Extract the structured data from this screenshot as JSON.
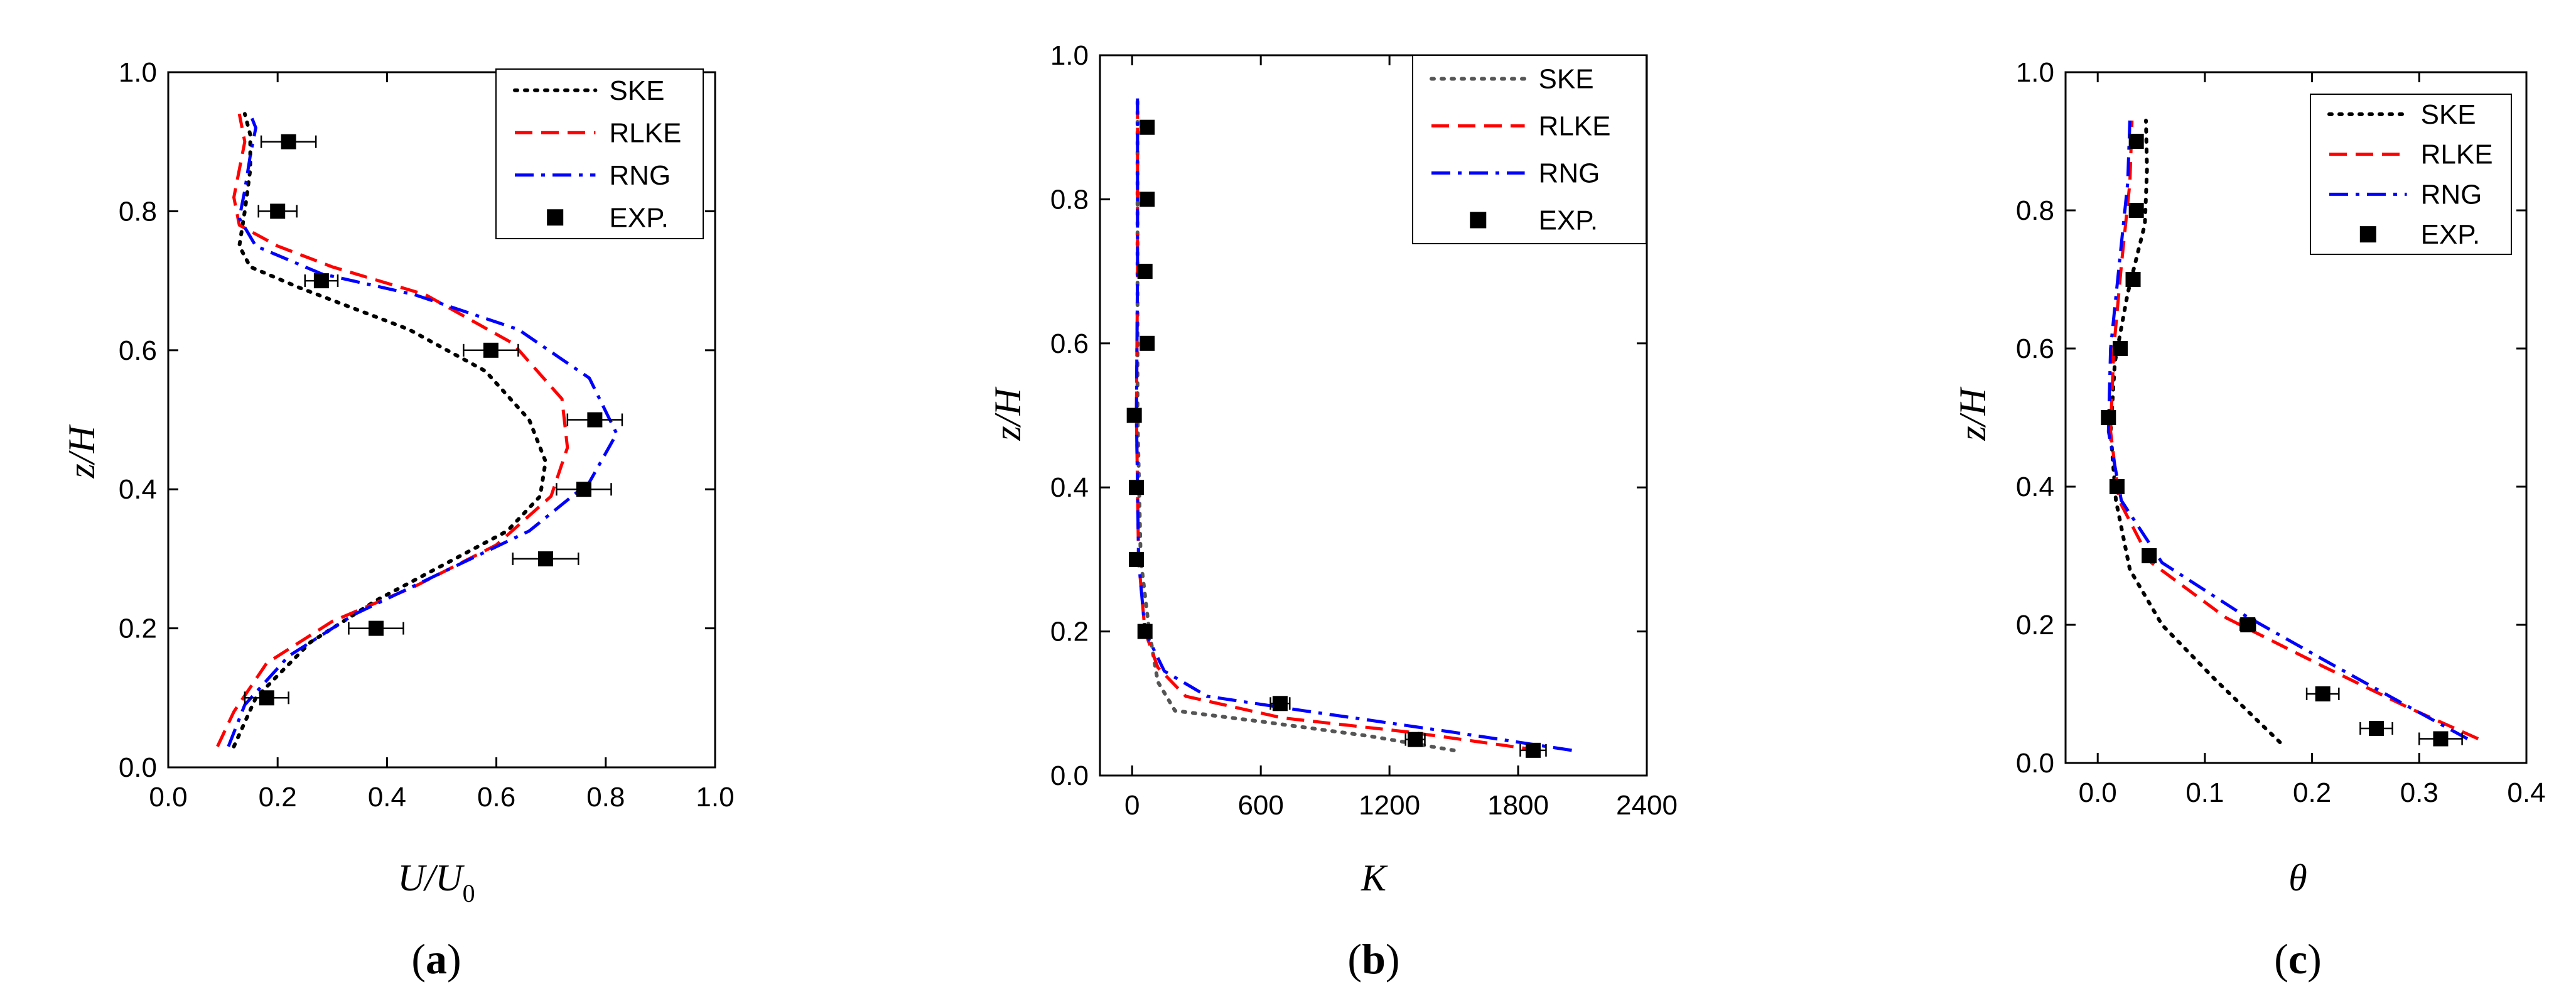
{
  "panels": [
    {
      "caption": {
        "open": "(",
        "letter": "a",
        "close": ")"
      },
      "x_label": {
        "main": "U/U",
        "sub": "0"
      },
      "y_label": "z/H",
      "chart_data": {
        "type": "line",
        "xlim": [
          0.0,
          1.0
        ],
        "ylim": [
          0.0,
          1.0
        ],
        "x_ticks": [
          "0.0",
          "0.2",
          "0.4",
          "0.6",
          "0.8",
          "1.0"
        ],
        "y_ticks": [
          "0.0",
          "0.2",
          "0.4",
          "0.6",
          "0.8",
          "1.0"
        ],
        "legend_position": "top-right",
        "series": [
          {
            "name": "SKE",
            "style": "dotted",
            "color": "#000000",
            "points": [
              [
                0.12,
                0.03
              ],
              [
                0.16,
                0.1
              ],
              [
                0.26,
                0.18
              ],
              [
                0.38,
                0.24
              ],
              [
                0.5,
                0.29
              ],
              [
                0.62,
                0.34
              ],
              [
                0.68,
                0.39
              ],
              [
                0.69,
                0.44
              ],
              [
                0.66,
                0.5
              ],
              [
                0.58,
                0.57
              ],
              [
                0.44,
                0.63
              ],
              [
                0.24,
                0.69
              ],
              [
                0.15,
                0.72
              ],
              [
                0.13,
                0.75
              ],
              [
                0.14,
                0.8
              ],
              [
                0.15,
                0.86
              ],
              [
                0.15,
                0.91
              ],
              [
                0.14,
                0.94
              ]
            ]
          },
          {
            "name": "RLKE",
            "style": "dashed",
            "color": "#ff0000",
            "points": [
              [
                0.09,
                0.03
              ],
              [
                0.12,
                0.08
              ],
              [
                0.18,
                0.15
              ],
              [
                0.3,
                0.21
              ],
              [
                0.45,
                0.26
              ],
              [
                0.6,
                0.32
              ],
              [
                0.7,
                0.39
              ],
              [
                0.73,
                0.46
              ],
              [
                0.72,
                0.53
              ],
              [
                0.63,
                0.61
              ],
              [
                0.47,
                0.68
              ],
              [
                0.3,
                0.72
              ],
              [
                0.2,
                0.75
              ],
              [
                0.13,
                0.78
              ],
              [
                0.12,
                0.82
              ],
              [
                0.13,
                0.86
              ],
              [
                0.14,
                0.9
              ],
              [
                0.13,
                0.94
              ]
            ]
          },
          {
            "name": "RNG",
            "style": "dashdot",
            "color": "#0000ff",
            "points": [
              [
                0.11,
                0.03
              ],
              [
                0.14,
                0.09
              ],
              [
                0.22,
                0.16
              ],
              [
                0.34,
                0.22
              ],
              [
                0.5,
                0.28
              ],
              [
                0.66,
                0.34
              ],
              [
                0.77,
                0.41
              ],
              [
                0.82,
                0.48
              ],
              [
                0.77,
                0.56
              ],
              [
                0.64,
                0.63
              ],
              [
                0.45,
                0.68
              ],
              [
                0.28,
                0.71
              ],
              [
                0.16,
                0.75
              ],
              [
                0.13,
                0.79
              ],
              [
                0.14,
                0.83
              ],
              [
                0.15,
                0.88
              ],
              [
                0.16,
                0.92
              ],
              [
                0.15,
                0.94
              ]
            ]
          }
        ],
        "experiment": {
          "name": "EXP.",
          "points": [
            [
              0.22,
              0.9
            ],
            [
              0.2,
              0.8
            ],
            [
              0.28,
              0.7
            ],
            [
              0.59,
              0.6
            ],
            [
              0.78,
              0.5
            ],
            [
              0.76,
              0.4
            ],
            [
              0.69,
              0.3
            ],
            [
              0.38,
              0.2
            ],
            [
              0.18,
              0.1
            ]
          ],
          "error": [
            0.05,
            0.035,
            0.03,
            0.05,
            0.05,
            0.05,
            0.06,
            0.05,
            0.04
          ]
        }
      }
    },
    {
      "caption": {
        "open": "(",
        "letter": "b",
        "close": ")"
      },
      "x_label": {
        "main": "K",
        "sub": ""
      },
      "y_label": "z/H",
      "chart_data": {
        "type": "line",
        "xlim": [
          -150,
          2400
        ],
        "ylim": [
          0.0,
          1.0
        ],
        "x_tick_values": [
          0,
          600,
          1200,
          1800,
          2400
        ],
        "x_ticks": [
          "0",
          "600",
          "1200",
          "1800",
          "2400"
        ],
        "y_ticks": [
          "0.0",
          "0.2",
          "0.4",
          "0.6",
          "0.8",
          "1.0"
        ],
        "legend_position": "top-right",
        "series": [
          {
            "name": "SKE",
            "style": "dotted",
            "color": "#555555",
            "points": [
              [
                1500,
                0.035
              ],
              [
                1100,
                0.055
              ],
              [
                600,
                0.075
              ],
              [
                200,
                0.09
              ],
              [
                120,
                0.13
              ],
              [
                80,
                0.2
              ],
              [
                40,
                0.3
              ],
              [
                25,
                0.5
              ],
              [
                25,
                0.7
              ],
              [
                25,
                0.94
              ]
            ]
          },
          {
            "name": "RLKE",
            "style": "dashed",
            "color": "#ff0000",
            "points": [
              [
                1900,
                0.035
              ],
              [
                1300,
                0.06
              ],
              [
                700,
                0.08
              ],
              [
                250,
                0.11
              ],
              [
                120,
                0.15
              ],
              [
                60,
                0.2
              ],
              [
                30,
                0.3
              ],
              [
                20,
                0.5
              ],
              [
                25,
                0.7
              ],
              [
                25,
                0.94
              ]
            ]
          },
          {
            "name": "RNG",
            "style": "dashdot",
            "color": "#0000ff",
            "points": [
              [
                2050,
                0.035
              ],
              [
                1500,
                0.06
              ],
              [
                800,
                0.09
              ],
              [
                350,
                0.11
              ],
              [
                150,
                0.145
              ],
              [
                60,
                0.2
              ],
              [
                30,
                0.3
              ],
              [
                20,
                0.5
              ],
              [
                25,
                0.7
              ],
              [
                25,
                0.94
              ]
            ]
          }
        ],
        "experiment": {
          "name": "EXP.",
          "points": [
            [
              70,
              0.9
            ],
            [
              70,
              0.8
            ],
            [
              60,
              0.7
            ],
            [
              70,
              0.6
            ],
            [
              10,
              0.5
            ],
            [
              20,
              0.4
            ],
            [
              20,
              0.3
            ],
            [
              60,
              0.2
            ],
            [
              690,
              0.1
            ],
            [
              1320,
              0.05
            ],
            [
              1870,
              0.035
            ]
          ],
          "error": [
            0,
            0,
            0,
            0,
            0,
            0,
            0,
            0,
            45,
            45,
            60
          ]
        }
      }
    },
    {
      "caption": {
        "open": "(",
        "letter": "c",
        "close": ")"
      },
      "x_label": {
        "main": "θ",
        "sub": ""
      },
      "y_label": "z/H",
      "chart_data": {
        "type": "line",
        "xlim": [
          -0.03,
          0.4
        ],
        "ylim": [
          0.0,
          1.0
        ],
        "x_tick_values": [
          0.0,
          0.1,
          0.2,
          0.3,
          0.4
        ],
        "x_ticks": [
          "0.0",
          "0.1",
          "0.2",
          "0.3",
          "0.4"
        ],
        "y_ticks": [
          "0.0",
          "0.2",
          "0.4",
          "0.6",
          "0.8",
          "1.0"
        ],
        "legend_position": "top-right",
        "series": [
          {
            "name": "SKE",
            "style": "dotted",
            "color": "#000000",
            "points": [
              [
                0.17,
                0.03
              ],
              [
                0.11,
                0.12
              ],
              [
                0.06,
                0.2
              ],
              [
                0.03,
                0.28
              ],
              [
                0.017,
                0.38
              ],
              [
                0.012,
                0.48
              ],
              [
                0.016,
                0.58
              ],
              [
                0.028,
                0.68
              ],
              [
                0.044,
                0.78
              ],
              [
                0.046,
                0.86
              ],
              [
                0.045,
                0.93
              ]
            ]
          },
          {
            "name": "RLKE",
            "style": "dashed",
            "color": "#ff0000",
            "points": [
              [
                0.355,
                0.035
              ],
              [
                0.29,
                0.08
              ],
              [
                0.21,
                0.14
              ],
              [
                0.12,
                0.21
              ],
              [
                0.05,
                0.29
              ],
              [
                0.02,
                0.38
              ],
              [
                0.012,
                0.48
              ],
              [
                0.015,
                0.6
              ],
              [
                0.022,
                0.72
              ],
              [
                0.03,
                0.84
              ],
              [
                0.032,
                0.93
              ]
            ]
          },
          {
            "name": "RNG",
            "style": "dashdot",
            "color": "#0000ff",
            "points": [
              [
                0.345,
                0.035
              ],
              [
                0.28,
                0.09
              ],
              [
                0.21,
                0.15
              ],
              [
                0.13,
                0.22
              ],
              [
                0.06,
                0.29
              ],
              [
                0.022,
                0.38
              ],
              [
                0.01,
                0.48
              ],
              [
                0.012,
                0.6
              ],
              [
                0.02,
                0.72
              ],
              [
                0.028,
                0.84
              ],
              [
                0.03,
                0.93
              ]
            ]
          }
        ],
        "experiment": {
          "name": "EXP.",
          "points": [
            [
              0.036,
              0.9
            ],
            [
              0.036,
              0.8
            ],
            [
              0.033,
              0.7
            ],
            [
              0.021,
              0.6
            ],
            [
              0.01,
              0.5
            ],
            [
              0.018,
              0.4
            ],
            [
              0.048,
              0.3
            ],
            [
              0.14,
              0.2
            ],
            [
              0.21,
              0.1
            ],
            [
              0.26,
              0.05
            ],
            [
              0.32,
              0.035
            ]
          ],
          "error": [
            0,
            0,
            0,
            0,
            0,
            0,
            0,
            0.007,
            0.015,
            0.015,
            0.02
          ]
        }
      }
    }
  ]
}
